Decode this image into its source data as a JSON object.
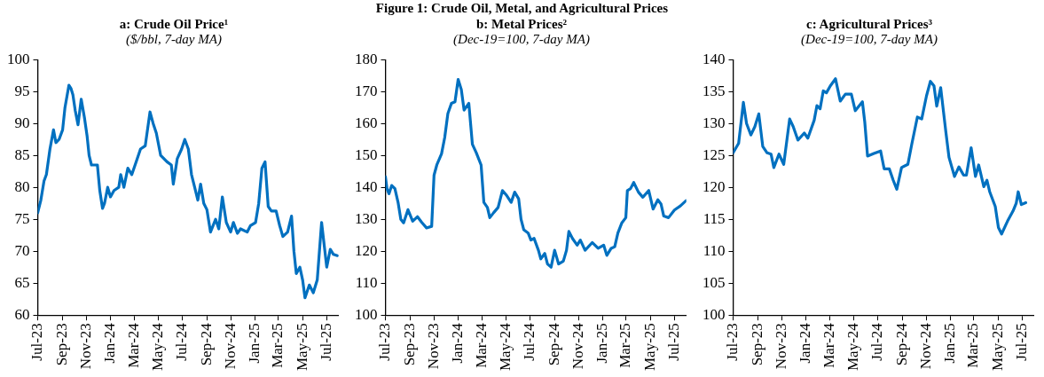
{
  "chart_data": [
    {
      "type": "line",
      "title": "a: Crude Oil Price¹",
      "subtitle": "($/bbl, 7-day MA)",
      "annotations": [
        "Figure 1: Crude Oil, Metal, and Agricultural Prices"
      ],
      "marker": "none",
      "grid": false,
      "legend": false,
      "xlim": [
        "2023-07-01",
        "2025-07-31"
      ],
      "xticks": [
        {
          "value": "2023-07-01",
          "label": "Jul-23"
        },
        {
          "value": "2023-09-01",
          "label": "Sep-23"
        },
        {
          "value": "2023-11-01",
          "label": "Nov-23"
        },
        {
          "value": "2024-01-01",
          "label": "Jan-24"
        },
        {
          "value": "2024-03-01",
          "label": "Mar-24"
        },
        {
          "value": "2024-05-01",
          "label": "May-24"
        },
        {
          "value": "2024-07-01",
          "label": "Jul-24"
        },
        {
          "value": "2024-09-01",
          "label": "Sep-24"
        },
        {
          "value": "2024-11-01",
          "label": "Nov-24"
        },
        {
          "value": "2025-01-01",
          "label": "Jan-25"
        },
        {
          "value": "2025-03-01",
          "label": "Mar-25"
        },
        {
          "value": "2025-05-01",
          "label": "May-25"
        },
        {
          "value": "2025-07-01",
          "label": "Jul-25"
        }
      ],
      "ylim": [
        60,
        100
      ],
      "yticks": [
        60,
        65,
        70,
        75,
        80,
        85,
        90,
        95,
        100
      ],
      "series": [
        {
          "color": "#0070c0",
          "x": [
            "2023-07-01",
            "2023-07-09",
            "2023-07-17",
            "2023-07-23",
            "2023-08-01",
            "2023-08-10",
            "2023-08-16",
            "2023-08-24",
            "2023-09-02",
            "2023-09-08",
            "2023-09-18",
            "2023-09-23",
            "2023-09-28",
            "2023-10-04",
            "2023-10-11",
            "2023-10-19",
            "2023-10-27",
            "2023-11-03",
            "2023-11-08",
            "2023-11-14",
            "2023-11-29",
            "2023-12-05",
            "2023-12-12",
            "2023-12-17",
            "2023-12-25",
            "2024-01-01",
            "2024-01-10",
            "2024-01-22",
            "2024-01-27",
            "2024-02-04",
            "2024-02-14",
            "2024-02-24",
            "2024-03-06",
            "2024-03-17",
            "2024-03-29",
            "2024-04-10",
            "2024-04-18",
            "2024-04-26",
            "2024-05-07",
            "2024-05-23",
            "2024-06-03",
            "2024-06-08",
            "2024-06-18",
            "2024-06-29",
            "2024-07-07",
            "2024-07-16",
            "2024-07-24",
            "2024-08-01",
            "2024-08-09",
            "2024-08-16",
            "2024-08-24",
            "2024-09-01",
            "2024-09-10",
            "2024-09-23",
            "2024-10-01",
            "2024-10-10",
            "2024-10-20",
            "2024-10-31",
            "2024-11-07",
            "2024-11-17",
            "2024-11-25",
            "2024-12-12",
            "2024-12-20",
            "2025-01-02",
            "2025-01-10",
            "2025-01-18",
            "2025-01-26",
            "2025-02-03",
            "2025-02-11",
            "2025-02-23",
            "2025-03-04",
            "2025-03-12",
            "2025-03-24",
            "2025-04-03",
            "2025-04-09",
            "2025-04-15",
            "2025-04-24",
            "2025-05-01",
            "2025-05-07",
            "2025-05-18",
            "2025-05-28",
            "2025-06-07",
            "2025-06-18",
            "2025-07-01",
            "2025-07-10",
            "2025-07-18",
            "2025-07-28"
          ],
          "values": [
            76,
            78,
            81,
            82,
            86,
            89,
            87,
            87.5,
            89,
            92.5,
            96,
            95.5,
            94.5,
            92,
            89.8,
            93.8,
            91,
            88,
            85,
            83.5,
            83.5,
            79.5,
            76.7,
            77.5,
            80,
            78.5,
            79.5,
            80,
            82,
            80,
            83,
            82,
            84,
            86,
            86.5,
            91.8,
            90,
            88.5,
            85,
            84,
            83.5,
            80.5,
            84.5,
            86,
            87.5,
            86,
            82,
            80,
            78,
            80.5,
            77.5,
            76.5,
            73,
            75,
            73.5,
            78.5,
            74.5,
            73,
            74.5,
            72.8,
            73.5,
            73,
            74,
            74.5,
            77.5,
            83,
            84,
            77,
            76.3,
            76.3,
            74,
            72.3,
            73,
            75.5,
            70,
            66.5,
            67.5,
            65.5,
            62.7,
            64.7,
            63.5,
            65.5,
            74.5,
            67.5,
            70.3,
            69.5,
            69.3
          ]
        }
      ]
    },
    {
      "type": "line",
      "title": "b: Metal Prices²",
      "subtitle": "(Dec-19=100, 7-day MA)",
      "marker": "none",
      "grid": false,
      "legend": false,
      "xlim": [
        "2023-07-01",
        "2025-07-31"
      ],
      "xticks": [
        {
          "value": "2023-07-01",
          "label": "Jul-23"
        },
        {
          "value": "2023-09-01",
          "label": "Sep-23"
        },
        {
          "value": "2023-11-01",
          "label": "Nov-23"
        },
        {
          "value": "2024-01-01",
          "label": "Jan-24"
        },
        {
          "value": "2024-03-01",
          "label": "Mar-24"
        },
        {
          "value": "2024-05-01",
          "label": "May-24"
        },
        {
          "value": "2024-07-01",
          "label": "Jul-24"
        },
        {
          "value": "2024-09-01",
          "label": "Sep-24"
        },
        {
          "value": "2024-11-01",
          "label": "Nov-24"
        },
        {
          "value": "2025-01-01",
          "label": "Jan-25"
        },
        {
          "value": "2025-03-01",
          "label": "Mar-25"
        },
        {
          "value": "2025-05-01",
          "label": "May-25"
        },
        {
          "value": "2025-07-01",
          "label": "Jul-25"
        }
      ],
      "ylim": [
        100,
        180
      ],
      "yticks": [
        100,
        110,
        120,
        130,
        140,
        150,
        160,
        170,
        180
      ],
      "series": [
        {
          "color": "#0070c0",
          "x": [
            "2023-07-01",
            "2023-07-05",
            "2023-07-10",
            "2023-07-17",
            "2023-07-25",
            "2023-08-02",
            "2023-08-09",
            "2023-08-16",
            "2023-08-27",
            "2023-09-08",
            "2023-09-20",
            "2023-10-01",
            "2023-10-13",
            "2023-10-26",
            "2023-11-01",
            "2023-11-08",
            "2023-11-20",
            "2023-11-28",
            "2023-12-06",
            "2023-12-15",
            "2023-12-24",
            "2024-01-01",
            "2024-01-09",
            "2024-01-16",
            "2024-01-28",
            "2024-02-06",
            "2024-02-16",
            "2024-02-28",
            "2024-03-06",
            "2024-03-15",
            "2024-03-21",
            "2024-03-31",
            "2024-04-11",
            "2024-04-22",
            "2024-05-03",
            "2024-05-14",
            "2024-05-23",
            "2024-06-02",
            "2024-06-08",
            "2024-06-15",
            "2024-06-26",
            "2024-07-03",
            "2024-07-11",
            "2024-07-22",
            "2024-07-28",
            "2024-08-07",
            "2024-08-14",
            "2024-08-23",
            "2024-09-01",
            "2024-09-11",
            "2024-09-23",
            "2024-10-01",
            "2024-10-07",
            "2024-10-16",
            "2024-10-28",
            "2024-11-05",
            "2024-11-17",
            "2024-12-05",
            "2024-12-20",
            "2025-01-03",
            "2025-01-11",
            "2025-01-22",
            "2025-01-31",
            "2025-02-08",
            "2025-02-18",
            "2025-02-28",
            "2025-03-04",
            "2025-03-12",
            "2025-03-20",
            "2025-04-01",
            "2025-04-12",
            "2025-04-27",
            "2025-05-08",
            "2025-05-20",
            "2025-05-28",
            "2025-06-04",
            "2025-06-16",
            "2025-07-01",
            "2025-07-16",
            "2025-07-30"
          ],
          "values": [
            143.3,
            139.6,
            138,
            140.6,
            139.6,
            135.3,
            130,
            128.9,
            133,
            129.4,
            130.8,
            129,
            127.3,
            127.8,
            143.8,
            147,
            150.5,
            155.6,
            163.1,
            166.3,
            166.8,
            173.8,
            170.6,
            164.2,
            166.3,
            153.5,
            150.8,
            147,
            135.3,
            133.7,
            130.5,
            132.1,
            133.7,
            139,
            137.4,
            135.3,
            138.5,
            136.4,
            130,
            126.7,
            125.7,
            123.5,
            124,
            120.3,
            117.6,
            119.3,
            116,
            115,
            120.3,
            116,
            116.9,
            120.3,
            126.2,
            124,
            121.9,
            123.5,
            120.3,
            122.7,
            120.9,
            121.9,
            118.7,
            120.9,
            121.4,
            125.7,
            128.9,
            130.5,
            139,
            139.6,
            141.5,
            138.5,
            136.9,
            139,
            133.2,
            136.1,
            134.8,
            131,
            130.5,
            132.9,
            134.2,
            135.8
          ]
        }
      ]
    },
    {
      "type": "line",
      "title": "c: Agricultural Prices³",
      "subtitle": "(Dec-19=100, 7-day MA)",
      "marker": "none",
      "grid": false,
      "legend": false,
      "xlim": [
        "2023-07-01",
        "2025-07-31"
      ],
      "xticks": [
        {
          "value": "2023-07-01",
          "label": "Jul-23"
        },
        {
          "value": "2023-09-01",
          "label": "Sep-23"
        },
        {
          "value": "2023-11-01",
          "label": "Nov-23"
        },
        {
          "value": "2024-01-01",
          "label": "Jan-24"
        },
        {
          "value": "2024-03-01",
          "label": "Mar-24"
        },
        {
          "value": "2024-05-01",
          "label": "May-24"
        },
        {
          "value": "2024-07-01",
          "label": "Jul-24"
        },
        {
          "value": "2024-09-01",
          "label": "Sep-24"
        },
        {
          "value": "2024-11-01",
          "label": "Nov-24"
        },
        {
          "value": "2025-01-01",
          "label": "Jan-25"
        },
        {
          "value": "2025-03-01",
          "label": "Mar-25"
        },
        {
          "value": "2025-05-01",
          "label": "May-25"
        },
        {
          "value": "2025-07-01",
          "label": "Jul-25"
        }
      ],
      "ylim": [
        100,
        140
      ],
      "yticks": [
        100,
        105,
        110,
        115,
        120,
        125,
        130,
        135,
        140
      ],
      "series": [
        {
          "color": "#0070c0",
          "x": [
            "2023-07-01",
            "2023-07-15",
            "2023-07-27",
            "2023-08-04",
            "2023-08-15",
            "2023-08-25",
            "2023-09-04",
            "2023-09-14",
            "2023-09-25",
            "2023-10-05",
            "2023-10-12",
            "2023-10-25",
            "2023-11-06",
            "2023-11-21",
            "2023-11-30",
            "2023-12-12",
            "2023-12-28",
            "2024-01-06",
            "2024-01-22",
            "2024-01-29",
            "2024-02-06",
            "2024-02-14",
            "2024-02-22",
            "2024-03-03",
            "2024-03-16",
            "2024-03-28",
            "2024-04-10",
            "2024-04-25",
            "2024-05-05",
            "2024-05-23",
            "2024-05-29",
            "2024-06-05",
            "2024-06-21",
            "2024-07-08",
            "2024-07-17",
            "2024-07-30",
            "2024-08-09",
            "2024-08-18",
            "2024-08-30",
            "2024-09-15",
            "2024-09-25",
            "2024-10-09",
            "2024-10-20",
            "2024-11-01",
            "2024-11-11",
            "2024-11-20",
            "2024-11-27",
            "2024-12-07",
            "2024-12-20",
            "2024-12-28",
            "2025-01-11",
            "2025-01-22",
            "2025-02-03",
            "2025-02-10",
            "2025-02-22",
            "2025-03-05",
            "2025-03-13",
            "2025-03-26",
            "2025-04-03",
            "2025-04-10",
            "2025-04-24",
            "2025-05-02",
            "2025-05-10",
            "2025-05-25",
            "2025-06-08",
            "2025-06-16",
            "2025-06-21",
            "2025-06-29",
            "2025-07-10"
          ],
          "values": [
            125.4,
            126.9,
            133.3,
            130,
            128.2,
            129.5,
            131.5,
            126.4,
            125.4,
            125.2,
            123.1,
            125.2,
            123.6,
            130.7,
            129.5,
            127.4,
            128.5,
            127.7,
            130.5,
            132.8,
            132.3,
            135.1,
            134.8,
            135.9,
            137,
            133.5,
            134.6,
            134.6,
            132,
            133.4,
            130.2,
            124.9,
            125.3,
            125.7,
            122.9,
            122.9,
            121.1,
            119.7,
            123.1,
            123.6,
            126.8,
            131,
            130.7,
            134.3,
            136.6,
            135.9,
            132.7,
            135.6,
            128.7,
            124.7,
            121.7,
            123.2,
            121.9,
            121.9,
            126.2,
            121.7,
            123.5,
            120.1,
            121.1,
            119.3,
            117,
            113.7,
            112.7,
            114.7,
            116.3,
            117.5,
            119.3,
            117.3,
            117.6
          ]
        }
      ]
    }
  ]
}
